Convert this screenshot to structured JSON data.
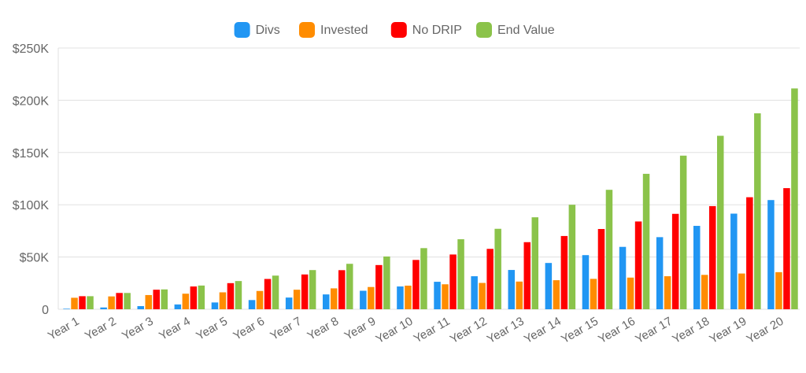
{
  "chart_data": {
    "type": "bar",
    "categories": [
      "Year 1",
      "Year 2",
      "Year 3",
      "Year 4",
      "Year 5",
      "Year 6",
      "Year 7",
      "Year 8",
      "Year 9",
      "Year 10",
      "Year 11",
      "Year 12",
      "Year 13",
      "Year 14",
      "Year 15",
      "Year 16",
      "Year 17",
      "Year 18",
      "Year 19",
      "Year 20"
    ],
    "series": [
      {
        "name": "Divs",
        "color": "#2196f3",
        "values": [
          500,
          1700,
          3000,
          4600,
          6500,
          8800,
          11200,
          14200,
          17700,
          21800,
          26300,
          31600,
          37600,
          44300,
          51800,
          59700,
          69000,
          79800,
          91500,
          104500
        ]
      },
      {
        "name": "Invested",
        "color": "#ff8c00",
        "values": [
          11000,
          12300,
          13600,
          14900,
          16200,
          17500,
          18700,
          20000,
          21300,
          22600,
          23900,
          25200,
          26500,
          27800,
          29100,
          30300,
          31600,
          32900,
          34200,
          35500
        ]
      },
      {
        "name": "No DRIP",
        "color": "#ff0000",
        "values": [
          12500,
          15600,
          18700,
          21800,
          25000,
          29000,
          33300,
          37400,
          42300,
          47200,
          52400,
          57800,
          64200,
          70100,
          76800,
          84000,
          91300,
          98700,
          107200,
          115900
        ]
      },
      {
        "name": "End Value",
        "color": "#8bc34a",
        "values": [
          12500,
          15600,
          19000,
          22700,
          27000,
          32200,
          37500,
          43500,
          50500,
          58500,
          67000,
          77000,
          88000,
          100000,
          114300,
          129600,
          147000,
          166000,
          187500,
          211300
        ]
      }
    ],
    "xlabel": "",
    "ylabel": "",
    "ylim": [
      0,
      250000
    ],
    "yticks": [
      {
        "value": 0,
        "label": "0"
      },
      {
        "value": 50000,
        "label": "$50K"
      },
      {
        "value": 100000,
        "label": "$100K"
      },
      {
        "value": 150000,
        "label": "$150K"
      },
      {
        "value": 200000,
        "label": "$200K"
      },
      {
        "value": 250000,
        "label": "$250K"
      }
    ],
    "grid": true,
    "legend_position": "top-center"
  }
}
